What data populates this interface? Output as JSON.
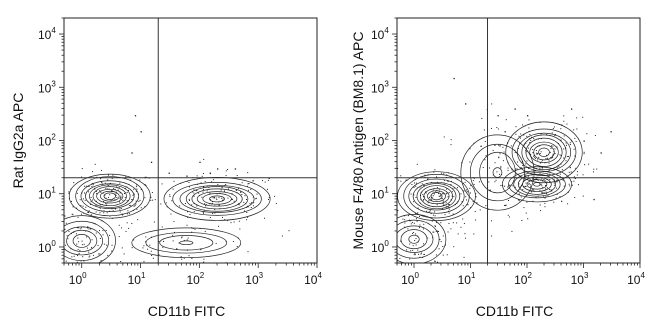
{
  "chart_data": [
    {
      "type": "scatter",
      "subtype": "flow-cytometry-contour-with-outliers",
      "title": "",
      "xlabel": "CD11b FITC",
      "ylabel": "Rat IgG2a APC",
      "x_scale": "log",
      "y_scale": "log",
      "xlim": [
        0.5,
        10000
      ],
      "ylim": [
        0.5,
        20000
      ],
      "x_ticks": [
        {
          "base": "10",
          "exp": "0",
          "value": 1
        },
        {
          "base": "10",
          "exp": "1",
          "value": 10
        },
        {
          "base": "10",
          "exp": "2",
          "value": 100
        },
        {
          "base": "10",
          "exp": "3",
          "value": 1000
        },
        {
          "base": "10",
          "exp": "4",
          "value": 10000
        }
      ],
      "y_ticks": [
        {
          "base": "10",
          "exp": "0",
          "value": 1
        },
        {
          "base": "10",
          "exp": "1",
          "value": 10
        },
        {
          "base": "10",
          "exp": "2",
          "value": 100
        },
        {
          "base": "10",
          "exp": "3",
          "value": 1000
        },
        {
          "base": "10",
          "exp": "4",
          "value": 10000
        }
      ],
      "gates": {
        "x": 20,
        "y": 20
      },
      "grid": false,
      "populations": [
        {
          "x": 3,
          "y": 9,
          "spread_x": 0.3,
          "spread_y": 0.18,
          "weight": 1.0
        },
        {
          "x": 1,
          "y": 1.3,
          "spread_x": 0.28,
          "spread_y": 0.22,
          "weight": 0.55
        },
        {
          "x": 200,
          "y": 8,
          "spread_x": 0.4,
          "spread_y": 0.17,
          "weight": 0.9
        },
        {
          "x": 60,
          "y": 1.2,
          "spread_x": 0.5,
          "spread_y": 0.15,
          "weight": 0.35
        }
      ],
      "outlier_points": [
        [
          8,
          300
        ],
        [
          7,
          60
        ],
        [
          10,
          150
        ],
        [
          100,
          40
        ],
        [
          200,
          30
        ],
        [
          400,
          30
        ],
        [
          150,
          25
        ],
        [
          1500,
          20
        ],
        [
          60,
          22
        ],
        [
          30,
          25
        ],
        [
          800,
          18
        ],
        [
          15,
          40
        ]
      ]
    },
    {
      "type": "scatter",
      "subtype": "flow-cytometry-contour-with-outliers",
      "title": "",
      "xlabel": "CD11b FITC",
      "ylabel": "Mouse F4/80 Antigen (BM8.1) APC",
      "x_scale": "log",
      "y_scale": "log",
      "xlim": [
        0.5,
        10000
      ],
      "ylim": [
        0.5,
        20000
      ],
      "x_ticks": [
        {
          "base": "10",
          "exp": "0",
          "value": 1
        },
        {
          "base": "10",
          "exp": "1",
          "value": 10
        },
        {
          "base": "10",
          "exp": "2",
          "value": 100
        },
        {
          "base": "10",
          "exp": "3",
          "value": 1000
        },
        {
          "base": "10",
          "exp": "4",
          "value": 10000
        }
      ],
      "y_ticks": [
        {
          "base": "10",
          "exp": "0",
          "value": 1
        },
        {
          "base": "10",
          "exp": "1",
          "value": 10
        },
        {
          "base": "10",
          "exp": "2",
          "value": 100
        },
        {
          "base": "10",
          "exp": "3",
          "value": 1000
        },
        {
          "base": "10",
          "exp": "4",
          "value": 10000
        }
      ],
      "gates": {
        "x": 20,
        "y": 20
      },
      "grid": false,
      "populations": [
        {
          "x": 2.5,
          "y": 9,
          "spread_x": 0.3,
          "spread_y": 0.2,
          "weight": 1.0
        },
        {
          "x": 1,
          "y": 1.4,
          "spread_x": 0.28,
          "spread_y": 0.22,
          "weight": 0.5
        },
        {
          "x": 200,
          "y": 60,
          "spread_x": 0.3,
          "spread_y": 0.24,
          "weight": 0.9
        },
        {
          "x": 150,
          "y": 15,
          "spread_x": 0.28,
          "spread_y": 0.15,
          "weight": 0.75
        },
        {
          "x": 30,
          "y": 25,
          "spread_x": 0.35,
          "spread_y": 0.4,
          "weight": 0.35
        }
      ],
      "outlier_points": [
        [
          5,
          1500
        ],
        [
          8,
          500
        ],
        [
          30,
          300
        ],
        [
          60,
          400
        ],
        [
          100,
          300
        ],
        [
          400,
          200
        ],
        [
          1000,
          100
        ],
        [
          2000,
          60
        ],
        [
          3000,
          150
        ],
        [
          700,
          20
        ],
        [
          1500,
          8
        ],
        [
          600,
          400
        ],
        [
          15,
          80
        ],
        [
          40,
          150
        ]
      ]
    }
  ]
}
